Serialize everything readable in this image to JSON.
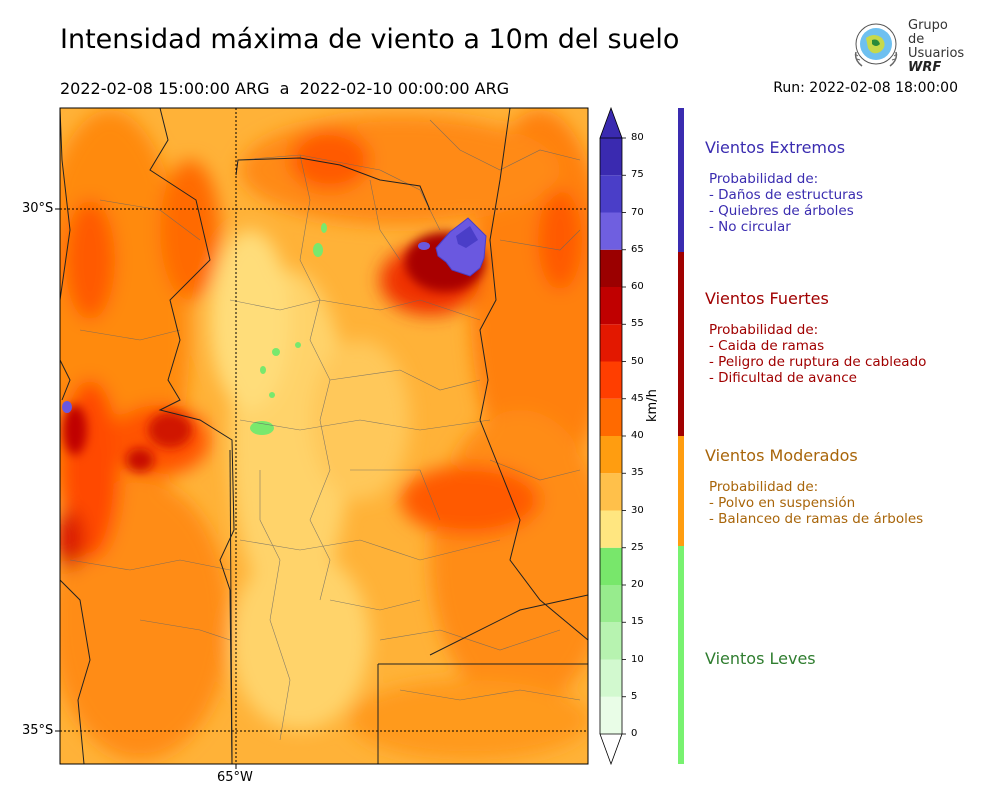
{
  "title": "Intensidad máxima de viento a 10m del suelo",
  "subtitle": "2022-02-08 15:00:00 ARG  a  2022-02-10 00:00:00 ARG",
  "run": "Run: 2022-02-08 18:00:00",
  "logo": {
    "line1": "Grupo de",
    "line2": "Usuarios",
    "line3": "WRF"
  },
  "map": {
    "lat_labels": [
      "30°S",
      "35°S"
    ],
    "lon_labels": [
      "65°W"
    ]
  },
  "colorbar": {
    "unit": "km/h",
    "ticks": [
      "0",
      "5",
      "10",
      "15",
      "20",
      "25",
      "30",
      "35",
      "40",
      "45",
      "50",
      "55",
      "60",
      "65",
      "70",
      "75",
      "80"
    ],
    "levels": [
      0,
      5,
      10,
      15,
      20,
      25,
      30,
      35,
      40,
      45,
      50,
      55,
      60,
      65,
      70,
      75,
      80
    ],
    "colors": [
      "#e9fde7",
      "#d2f9cf",
      "#b7f3b0",
      "#97ec8d",
      "#78e76b",
      "#ffe680",
      "#ffc04a",
      "#ff9d10",
      "#ff6a00",
      "#ff3e00",
      "#e31800",
      "#c00000",
      "#9b0000",
      "#6f5fe0",
      "#4a3ec8",
      "#3a2ab0"
    ]
  },
  "legend": [
    {
      "heading": "Vientos Extremos",
      "color": "#3a2cb0",
      "bar_color": "#3a2cb0",
      "lines": [
        "Probabilidad de:",
        "- Daños de estructuras",
        "- Quiebres de árboles",
        "- No circular"
      ]
    },
    {
      "heading": "Vientos Fuertes",
      "color": "#a00000",
      "bar_color": "#a00000",
      "lines": [
        "Probabilidad de:",
        "- Caida de ramas",
        "- Peligro de ruptura de cableado",
        "- Dificultad de avance"
      ]
    },
    {
      "heading": "Vientos Moderados",
      "color": "#a8650a",
      "bar_color": "#ff9d10",
      "lines": [
        "Probabilidad de:",
        "- Polvo en suspensión",
        "- Balanceo de ramas de árboles"
      ]
    },
    {
      "heading": "Vientos Leves",
      "color": "#2f7d2f",
      "bar_color": "#78f270",
      "lines": []
    }
  ]
}
